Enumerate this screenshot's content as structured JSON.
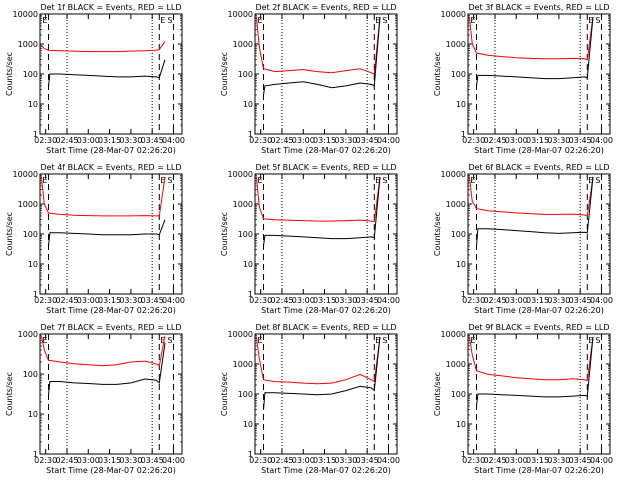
{
  "colors": {
    "events": "#000000",
    "lld": "#ff0000",
    "axes": "#000000"
  },
  "shared": {
    "ylabel": "Counts/sec",
    "xlabel": "Start Time (28-Mar-07 02:26:20)",
    "x_ticks": [
      "02:30",
      "02:45",
      "03:00",
      "03:15",
      "03:30",
      "03:45",
      "04:00"
    ],
    "y_ticks": [
      "1",
      "10",
      "100",
      "1000",
      "10000"
    ],
    "marker_labels": [
      "E",
      "S"
    ]
  },
  "chart_data": [
    {
      "type": "line",
      "title": "Det 1f BLACK = Events, RED = LLD",
      "xlabel": "Start Time (28-Mar-07 02:26:20)",
      "ylabel": "Counts/sec",
      "y_scale": "log",
      "ylim": [
        1,
        10000
      ],
      "xlim": [
        "02:26",
        "04:06"
      ],
      "series": [
        {
          "name": "LLD",
          "color": "red",
          "x": [
            "02:27",
            "02:29",
            "02:32",
            "02:40",
            "02:50",
            "03:00",
            "03:10",
            "03:20",
            "03:30",
            "03:40",
            "03:48",
            "03:50",
            "03:54"
          ],
          "y": [
            900,
            700,
            620,
            600,
            580,
            560,
            560,
            560,
            580,
            600,
            620,
            650,
            1200
          ]
        },
        {
          "name": "Events",
          "color": "black",
          "x": [
            "02:32",
            "02:33",
            "02:40",
            "02:50",
            "03:00",
            "03:10",
            "03:20",
            "03:30",
            "03:40",
            "03:48",
            "03:50",
            "03:54"
          ],
          "y": [
            40,
            100,
            100,
            95,
            90,
            85,
            80,
            80,
            85,
            80,
            75,
            300
          ]
        }
      ]
    },
    {
      "type": "line",
      "title": "Det 2f BLACK = Events, RED = LLD",
      "xlabel": "Start Time (28-Mar-07 02:26:20)",
      "ylabel": "Counts/sec",
      "y_scale": "log",
      "ylim": [
        1,
        10000
      ],
      "xlim": [
        "02:26",
        "04:06"
      ],
      "series": [
        {
          "name": "LLD",
          "color": "red",
          "x": [
            "02:27",
            "02:29",
            "02:32",
            "02:40",
            "02:50",
            "03:00",
            "03:10",
            "03:20",
            "03:30",
            "03:40",
            "03:48",
            "03:50",
            "03:54"
          ],
          "y": [
            8000,
            800,
            150,
            120,
            130,
            140,
            120,
            110,
            130,
            150,
            110,
            100,
            8000
          ]
        },
        {
          "name": "Events",
          "color": "black",
          "x": [
            "02:32",
            "02:33",
            "02:40",
            "02:50",
            "03:00",
            "03:10",
            "03:20",
            "03:30",
            "03:40",
            "03:48",
            "03:50",
            "03:54"
          ],
          "y": [
            20,
            40,
            45,
            50,
            55,
            45,
            35,
            40,
            50,
            45,
            40,
            8000
          ]
        }
      ]
    },
    {
      "type": "line",
      "title": "Det 3f BLACK = Events, RED = LLD",
      "xlabel": "Start Time (28-Mar-07 02:26:20)",
      "ylabel": "Counts/sec",
      "y_scale": "log",
      "ylim": [
        1,
        10000
      ],
      "xlim": [
        "02:26",
        "04:06"
      ],
      "series": [
        {
          "name": "LLD",
          "color": "red",
          "x": [
            "02:27",
            "02:29",
            "02:32",
            "02:40",
            "02:50",
            "03:00",
            "03:10",
            "03:20",
            "03:30",
            "03:40",
            "03:48",
            "03:50",
            "03:54"
          ],
          "y": [
            8000,
            1000,
            500,
            420,
            380,
            350,
            330,
            320,
            320,
            330,
            320,
            300,
            8000
          ]
        },
        {
          "name": "Events",
          "color": "black",
          "x": [
            "02:32",
            "02:33",
            "02:40",
            "02:50",
            "03:00",
            "03:10",
            "03:20",
            "03:30",
            "03:40",
            "03:48",
            "03:50",
            "03:54"
          ],
          "y": [
            40,
            90,
            90,
            85,
            80,
            75,
            70,
            70,
            75,
            80,
            75,
            8000
          ]
        }
      ]
    },
    {
      "type": "line",
      "title": "Det 4f BLACK = Events, RED = LLD",
      "xlabel": "Start Time (28-Mar-07 02:26:20)",
      "ylabel": "Counts/sec",
      "y_scale": "log",
      "ylim": [
        1,
        10000
      ],
      "xlim": [
        "02:26",
        "04:06"
      ],
      "series": [
        {
          "name": "LLD",
          "color": "red",
          "x": [
            "02:27",
            "02:29",
            "02:32",
            "02:40",
            "02:50",
            "03:00",
            "03:10",
            "03:20",
            "03:30",
            "03:40",
            "03:48",
            "03:50",
            "03:54"
          ],
          "y": [
            8000,
            1000,
            500,
            450,
            420,
            410,
            400,
            400,
            400,
            410,
            400,
            400,
            8000
          ]
        },
        {
          "name": "Events",
          "color": "black",
          "x": [
            "02:32",
            "02:33",
            "02:40",
            "02:50",
            "03:00",
            "03:10",
            "03:20",
            "03:30",
            "03:40",
            "03:48",
            "03:50",
            "03:54"
          ],
          "y": [
            40,
            110,
            110,
            105,
            100,
            95,
            95,
            95,
            100,
            100,
            95,
            300
          ]
        }
      ]
    },
    {
      "type": "line",
      "title": "Det 5f BLACK = Events, RED = LLD",
      "xlabel": "Start Time (28-Mar-07 02:26:20)",
      "ylabel": "Counts/sec",
      "y_scale": "log",
      "ylim": [
        1,
        10000
      ],
      "xlim": [
        "02:26",
        "04:06"
      ],
      "series": [
        {
          "name": "LLD",
          "color": "red",
          "x": [
            "02:27",
            "02:29",
            "02:32",
            "02:40",
            "02:50",
            "03:00",
            "03:10",
            "03:20",
            "03:30",
            "03:40",
            "03:48",
            "03:50",
            "03:54"
          ],
          "y": [
            8000,
            800,
            320,
            300,
            290,
            280,
            270,
            270,
            280,
            290,
            270,
            260,
            8000
          ]
        },
        {
          "name": "Events",
          "color": "black",
          "x": [
            "02:32",
            "02:33",
            "02:40",
            "02:50",
            "03:00",
            "03:10",
            "03:20",
            "03:30",
            "03:40",
            "03:48",
            "03:50",
            "03:54"
          ],
          "y": [
            40,
            90,
            90,
            85,
            80,
            75,
            70,
            70,
            75,
            80,
            75,
            8000
          ]
        }
      ]
    },
    {
      "type": "line",
      "title": "Det 6f BLACK = Events, RED = LLD",
      "xlabel": "Start Time (28-Mar-07 02:26:20)",
      "ylabel": "Counts/sec",
      "y_scale": "log",
      "ylim": [
        1,
        10000
      ],
      "xlim": [
        "02:26",
        "04:06"
      ],
      "series": [
        {
          "name": "LLD",
          "color": "red",
          "x": [
            "02:27",
            "02:29",
            "02:32",
            "02:40",
            "02:50",
            "03:00",
            "03:10",
            "03:20",
            "03:30",
            "03:40",
            "03:48",
            "03:50",
            "03:54"
          ],
          "y": [
            8000,
            1200,
            700,
            600,
            550,
            500,
            480,
            450,
            450,
            460,
            430,
            400,
            8000
          ]
        },
        {
          "name": "Events",
          "color": "black",
          "x": [
            "02:32",
            "02:33",
            "02:40",
            "02:50",
            "03:00",
            "03:10",
            "03:20",
            "03:30",
            "03:40",
            "03:48",
            "03:50",
            "03:54"
          ],
          "y": [
            40,
            150,
            150,
            140,
            130,
            120,
            110,
            105,
            110,
            115,
            110,
            8000
          ]
        }
      ]
    },
    {
      "type": "line",
      "title": "Det 7f BLACK = Events, RED = LLD",
      "xlabel": "Start Time (28-Mar-07 02:26:20)",
      "ylabel": "Counts/sec",
      "y_scale": "log",
      "ylim": [
        1,
        1000
      ],
      "xlim": [
        "02:26",
        "04:06"
      ],
      "series": [
        {
          "name": "LLD",
          "color": "red",
          "x": [
            "02:27",
            "02:29",
            "02:32",
            "02:40",
            "02:50",
            "03:00",
            "03:10",
            "03:20",
            "03:30",
            "03:40",
            "03:48",
            "03:50",
            "03:54"
          ],
          "y": [
            900,
            400,
            220,
            200,
            180,
            170,
            160,
            170,
            200,
            210,
            180,
            160,
            900
          ]
        },
        {
          "name": "Events",
          "color": "black",
          "x": [
            "02:32",
            "02:33",
            "02:40",
            "02:50",
            "03:00",
            "03:10",
            "03:20",
            "03:30",
            "03:40",
            "03:48",
            "03:50",
            "03:54"
          ],
          "y": [
            30,
            65,
            65,
            60,
            58,
            55,
            55,
            60,
            75,
            70,
            60,
            600
          ]
        }
      ]
    },
    {
      "type": "line",
      "title": "Det 8f BLACK = Events, RED = LLD",
      "xlabel": "Start Time (28-Mar-07 02:26:20)",
      "ylabel": "Counts/sec",
      "y_scale": "log",
      "ylim": [
        1,
        10000
      ],
      "xlim": [
        "02:26",
        "04:06"
      ],
      "series": [
        {
          "name": "LLD",
          "color": "red",
          "x": [
            "02:27",
            "02:29",
            "02:32",
            "02:40",
            "02:50",
            "03:00",
            "03:10",
            "03:20",
            "03:30",
            "03:40",
            "03:48",
            "03:50",
            "03:54"
          ],
          "y": [
            8000,
            1500,
            300,
            260,
            250,
            230,
            220,
            230,
            300,
            450,
            300,
            260,
            8000
          ]
        },
        {
          "name": "Events",
          "color": "black",
          "x": [
            "02:32",
            "02:33",
            "02:40",
            "02:50",
            "03:00",
            "03:10",
            "03:20",
            "03:30",
            "03:40",
            "03:48",
            "03:50",
            "03:54"
          ],
          "y": [
            30,
            110,
            110,
            105,
            100,
            95,
            100,
            130,
            180,
            160,
            130,
            8000
          ]
        }
      ]
    },
    {
      "type": "line",
      "title": "Det 9f BLACK = Events, RED = LLD",
      "xlabel": "Start Time (28-Mar-07 02:26:20)",
      "ylabel": "Counts/sec",
      "y_scale": "log",
      "ylim": [
        1,
        10000
      ],
      "xlim": [
        "02:26",
        "04:06"
      ],
      "series": [
        {
          "name": "LLD",
          "color": "red",
          "x": [
            "02:27",
            "02:29",
            "02:32",
            "02:40",
            "02:50",
            "03:00",
            "03:10",
            "03:20",
            "03:30",
            "03:40",
            "03:48",
            "03:50",
            "03:54"
          ],
          "y": [
            8000,
            2000,
            600,
            450,
            400,
            350,
            320,
            300,
            300,
            320,
            300,
            280,
            8000
          ]
        },
        {
          "name": "Events",
          "color": "black",
          "x": [
            "02:32",
            "02:33",
            "02:40",
            "02:50",
            "03:00",
            "03:10",
            "03:20",
            "03:30",
            "03:40",
            "03:48",
            "03:50",
            "03:54"
          ],
          "y": [
            40,
            100,
            100,
            95,
            90,
            85,
            80,
            80,
            85,
            90,
            85,
            8000
          ]
        }
      ]
    }
  ]
}
